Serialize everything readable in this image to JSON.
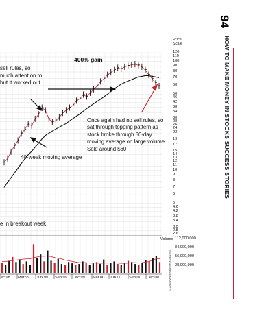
{
  "page": {
    "page_number": "94",
    "running_head": "HOW TO MAKE MONEY IN STOCKS SUCCESS STORIES",
    "copyright": "© 2010 Investor's Business Daily, Inc."
  },
  "annotations": {
    "gain": "400% gain",
    "left_note": [
      "sell rules, so",
      "much attention to",
      "but it worked out"
    ],
    "right_note": [
      "Once again had no sell rules, so",
      "sat through topping pattern as",
      "stock broke through 50-day",
      "moving average on large volume.",
      "Sold around $60"
    ],
    "ma_label": "40-week moving average",
    "breakout_note": "e in breakout week"
  },
  "price_scale": {
    "header": [
      "Price",
      "Scale"
    ],
    "ticks": [
      "120",
      "110",
      "100",
      "90",
      "80",
      "70",
      "60",
      "50",
      "46",
      "42",
      "38",
      "34",
      "30",
      "28",
      "26",
      "24",
      "22",
      "19",
      "17",
      "15",
      "14",
      "13",
      "12",
      "11",
      "10",
      "9",
      "8",
      "7",
      "6",
      "5",
      "4.6",
      "4.2",
      "3.8",
      "3.4",
      "3.0",
      "2.8",
      "2.6"
    ]
  },
  "volume_scale": {
    "header": "Volume",
    "ticks": [
      "112,000,000",
      "84,000,000",
      "56,000,000",
      "28,000,000"
    ]
  },
  "chart_data": {
    "type": "line",
    "x_axis_labels": [
      "ec 98",
      "Mar 99",
      "Jun 99",
      "Sep 99",
      "Dec 99",
      "Mar 00",
      "Jun 00",
      "Sep 00",
      "Dec 00"
    ],
    "price_series": {
      "name": "price",
      "values": [
        12,
        13,
        15,
        17,
        19,
        22,
        24,
        27,
        26,
        30,
        33,
        38,
        36,
        30,
        28,
        29,
        31,
        34,
        36,
        38,
        40,
        44,
        46,
        50,
        48,
        52,
        56,
        60,
        66,
        70,
        76,
        80,
        84,
        88,
        86,
        90,
        92,
        94,
        95,
        93,
        90,
        84,
        76,
        70,
        64,
        60
      ]
    },
    "ma_series": {
      "name": "40-week moving average",
      "values": [
        7,
        7.8,
        8.6,
        9.5,
        10.5,
        11.6,
        12.8,
        14,
        15,
        16.4,
        17.8,
        19.5,
        21,
        22,
        23,
        24,
        25,
        26,
        27,
        28.5,
        30,
        31.5,
        33,
        35,
        37,
        39,
        41,
        43,
        45,
        47.5,
        50,
        53,
        56,
        59,
        62,
        64,
        66,
        68,
        70,
        72,
        73,
        74,
        74,
        73,
        72,
        71
      ]
    },
    "volume": [
      34,
      28,
      40,
      52,
      36,
      44,
      30,
      38,
      26,
      92,
      48,
      60,
      38,
      72,
      40,
      34,
      46,
      30,
      28,
      36,
      32,
      26,
      30,
      38,
      34,
      28,
      32,
      36,
      30,
      44,
      28,
      34,
      38,
      30,
      26,
      32,
      40,
      36,
      30,
      28,
      34,
      42,
      38,
      48,
      56,
      36
    ],
    "volume_avg": [
      38,
      38,
      39,
      41,
      42,
      44,
      45,
      46,
      46,
      50,
      52,
      54,
      54,
      55,
      53,
      50,
      48,
      46,
      42,
      40,
      38,
      36,
      34,
      34,
      34,
      33,
      33,
      33,
      32,
      33,
      33,
      33,
      34,
      33,
      32,
      32,
      33,
      34,
      34,
      33,
      34,
      36,
      38,
      42,
      46,
      46
    ],
    "ylim_price": [
      2.6,
      120
    ],
    "ylim_volume": [
      0,
      112000000
    ],
    "scale": "log"
  }
}
